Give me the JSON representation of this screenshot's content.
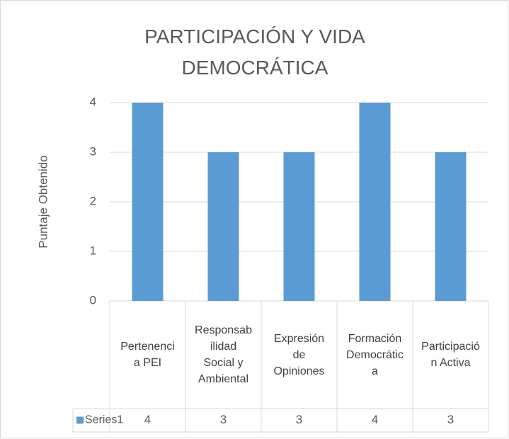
{
  "chart_data": {
    "type": "bar",
    "title": "PARTICIPACIÓN Y VIDA DEMOCRÁTICA",
    "y_axis_label": "Puntaje Obtenido",
    "categories": [
      "Pertenencia PEI",
      "Responsabilidad Social y Ambiental",
      "Expresión de Opiniones",
      "Formación Democrática",
      "Participación Activa"
    ],
    "series": [
      {
        "name": "Series1",
        "color": "#5b9bd5",
        "values": [
          4,
          3,
          3,
          4,
          3
        ]
      }
    ],
    "ylim": [
      0,
      4
    ],
    "yticks": [
      0,
      1,
      2,
      3,
      4
    ],
    "grid": true
  }
}
